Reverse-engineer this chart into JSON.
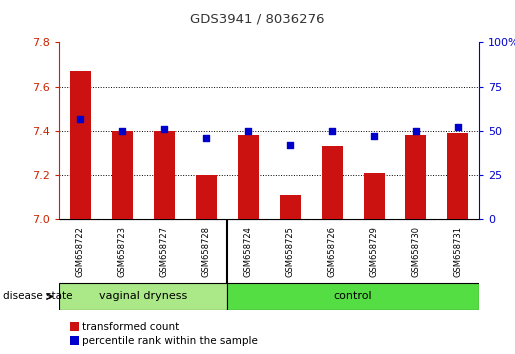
{
  "title": "GDS3941 / 8036276",
  "samples": [
    "GSM658722",
    "GSM658723",
    "GSM658727",
    "GSM658728",
    "GSM658724",
    "GSM658725",
    "GSM658726",
    "GSM658729",
    "GSM658730",
    "GSM658731"
  ],
  "group_boundary": 4,
  "red_values": [
    7.67,
    7.4,
    7.4,
    7.2,
    7.38,
    7.11,
    7.33,
    7.21,
    7.38,
    7.39
  ],
  "blue_values": [
    57,
    50,
    51,
    46,
    50,
    42,
    50,
    47,
    50,
    52
  ],
  "ylim_left": [
    7.0,
    7.8
  ],
  "ylim_right": [
    0,
    100
  ],
  "yticks_left": [
    7.0,
    7.2,
    7.4,
    7.6,
    7.8
  ],
  "yticks_right": [
    0,
    25,
    50,
    75,
    100
  ],
  "bar_color": "#cc1111",
  "dot_color": "#0000cc",
  "group1_label": "vaginal dryness",
  "group2_label": "control",
  "group1_color": "#aae888",
  "group2_color": "#55dd44",
  "disease_state_label": "disease state",
  "legend_items": [
    "transformed count",
    "percentile rank within the sample"
  ],
  "background_color": "#ffffff",
  "plot_bg": "#ffffff",
  "sample_label_bg": "#cccccc",
  "dotted_line_color": "#000000",
  "left_axis_color": "#cc2200",
  "right_axis_color": "#0000cc",
  "title_color": "#333333",
  "grid_yticks": [
    7.2,
    7.4,
    7.6
  ]
}
